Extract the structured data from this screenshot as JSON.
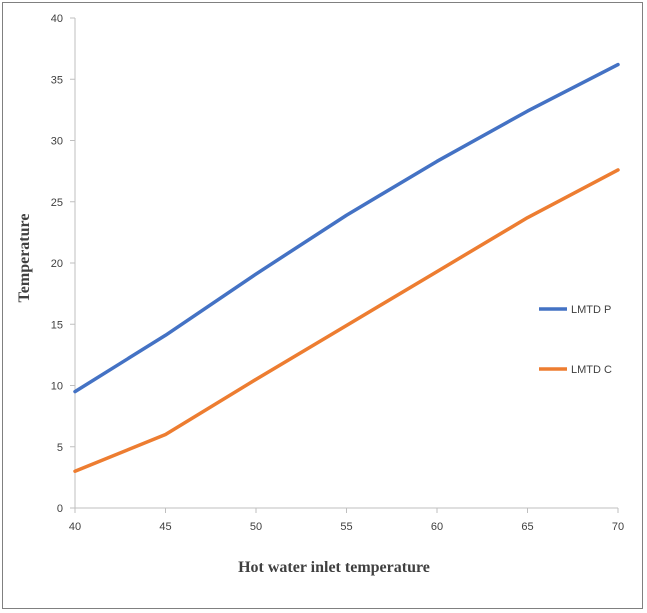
{
  "chart_data": {
    "type": "line",
    "title": "",
    "xlabel": "Hot water inlet temperature",
    "ylabel": "Temperature",
    "x": [
      40,
      45,
      50,
      55,
      60,
      65,
      70
    ],
    "xlim": [
      40,
      70
    ],
    "ylim": [
      0,
      40
    ],
    "xticks": [
      "40",
      "45",
      "50",
      "55",
      "60",
      "65",
      "70"
    ],
    "yticks": [
      "0",
      "5",
      "10",
      "15",
      "20",
      "25",
      "30",
      "35",
      "40"
    ],
    "grid": false,
    "legend_position": "right",
    "series": [
      {
        "name": "LMTD P",
        "color": "#4472C4",
        "values": [
          9.5,
          14.1,
          19.1,
          23.9,
          28.3,
          32.4,
          36.2
        ]
      },
      {
        "name": "LMTD C",
        "color": "#ED7D31",
        "values": [
          3.0,
          6.0,
          10.5,
          14.9,
          19.3,
          23.7,
          27.6
        ]
      }
    ]
  }
}
